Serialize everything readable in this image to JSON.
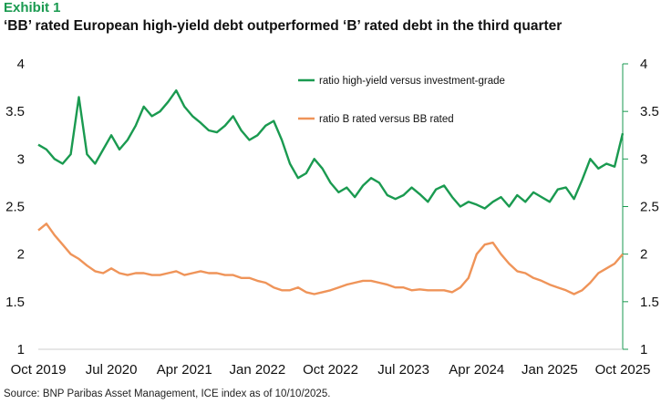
{
  "header": {
    "exhibit": "Exhibit 1",
    "title": "‘BB’ rated European high-yield debt outperformed ‘B’ rated debt in the third quarter"
  },
  "footer": {
    "source": "Source: BNP Paribas Asset Management, ICE index as of 10/10/2025."
  },
  "chart_data": {
    "type": "line",
    "title": "‘BB’ rated European high-yield debt outperformed ‘B’ rated debt in the third quarter",
    "xlabel": "",
    "ylabel": "",
    "ylim": [
      1,
      4
    ],
    "yticks": [
      "1",
      "1.5",
      "2",
      "2.5",
      "3",
      "3.5",
      "4"
    ],
    "xtick_labels": [
      "Oct 2019",
      "Jul 2020",
      "Apr 2021",
      "Jan 2022",
      "Oct 2022",
      "Jul 2023",
      "Apr 2024",
      "Jan 2025",
      "Oct 2025"
    ],
    "grid": false,
    "legend_position": "top-center",
    "colors": {
      "hy_ig": "#1a9a50",
      "b_bb": "#ef9459",
      "right_axis": "#1a9a50"
    },
    "series": [
      {
        "name": "ratio high-yield versus investment-grade",
        "key": "hy_ig",
        "x": [
          "2019-10",
          "2019-11",
          "2019-12",
          "2020-01",
          "2020-02",
          "2020-03",
          "2020-04",
          "2020-05",
          "2020-06",
          "2020-07",
          "2020-08",
          "2020-09",
          "2020-10",
          "2020-11",
          "2020-12",
          "2021-01",
          "2021-02",
          "2021-03",
          "2021-04",
          "2021-05",
          "2021-06",
          "2021-07",
          "2021-08",
          "2021-09",
          "2021-10",
          "2021-11",
          "2021-12",
          "2022-01",
          "2022-02",
          "2022-03",
          "2022-04",
          "2022-05",
          "2022-06",
          "2022-07",
          "2022-08",
          "2022-09",
          "2022-10",
          "2022-11",
          "2022-12",
          "2023-01",
          "2023-02",
          "2023-03",
          "2023-04",
          "2023-05",
          "2023-06",
          "2023-07",
          "2023-08",
          "2023-09",
          "2023-10",
          "2023-11",
          "2023-12",
          "2024-01",
          "2024-02",
          "2024-03",
          "2024-04",
          "2024-05",
          "2024-06",
          "2024-07",
          "2024-08",
          "2024-09",
          "2024-10",
          "2024-11",
          "2024-12",
          "2025-01",
          "2025-02",
          "2025-03",
          "2025-04",
          "2025-05",
          "2025-06",
          "2025-07",
          "2025-08",
          "2025-09",
          "2025-10"
        ],
        "values": [
          3.15,
          3.1,
          3.0,
          2.95,
          3.05,
          3.65,
          3.05,
          2.95,
          3.1,
          3.25,
          3.1,
          3.2,
          3.35,
          3.55,
          3.45,
          3.5,
          3.6,
          3.72,
          3.55,
          3.45,
          3.38,
          3.3,
          3.28,
          3.35,
          3.45,
          3.3,
          3.2,
          3.25,
          3.35,
          3.4,
          3.2,
          2.95,
          2.8,
          2.85,
          3.0,
          2.9,
          2.75,
          2.65,
          2.7,
          2.6,
          2.72,
          2.8,
          2.75,
          2.62,
          2.58,
          2.62,
          2.7,
          2.63,
          2.55,
          2.68,
          2.72,
          2.6,
          2.5,
          2.55,
          2.52,
          2.48,
          2.55,
          2.6,
          2.5,
          2.62,
          2.55,
          2.65,
          2.6,
          2.55,
          2.68,
          2.7,
          2.58,
          2.78,
          3.0,
          2.9,
          2.95,
          2.92,
          3.27
        ]
      },
      {
        "name": "ratio B rated versus BB rated",
        "key": "b_bb",
        "x": [
          "2019-10",
          "2019-11",
          "2019-12",
          "2020-01",
          "2020-02",
          "2020-03",
          "2020-04",
          "2020-05",
          "2020-06",
          "2020-07",
          "2020-08",
          "2020-09",
          "2020-10",
          "2020-11",
          "2020-12",
          "2021-01",
          "2021-02",
          "2021-03",
          "2021-04",
          "2021-05",
          "2021-06",
          "2021-07",
          "2021-08",
          "2021-09",
          "2021-10",
          "2021-11",
          "2021-12",
          "2022-01",
          "2022-02",
          "2022-03",
          "2022-04",
          "2022-05",
          "2022-06",
          "2022-07",
          "2022-08",
          "2022-09",
          "2022-10",
          "2022-11",
          "2022-12",
          "2023-01",
          "2023-02",
          "2023-03",
          "2023-04",
          "2023-05",
          "2023-06",
          "2023-07",
          "2023-08",
          "2023-09",
          "2023-10",
          "2023-11",
          "2023-12",
          "2024-01",
          "2024-02",
          "2024-03",
          "2024-04",
          "2024-05",
          "2024-06",
          "2024-07",
          "2024-08",
          "2024-09",
          "2024-10",
          "2024-11",
          "2024-12",
          "2025-01",
          "2025-02",
          "2025-03",
          "2025-04",
          "2025-05",
          "2025-06",
          "2025-07",
          "2025-08",
          "2025-09",
          "2025-10"
        ],
        "values": [
          2.25,
          2.32,
          2.2,
          2.1,
          2.0,
          1.95,
          1.88,
          1.82,
          1.8,
          1.85,
          1.8,
          1.78,
          1.8,
          1.8,
          1.78,
          1.78,
          1.8,
          1.82,
          1.78,
          1.8,
          1.82,
          1.8,
          1.8,
          1.78,
          1.78,
          1.75,
          1.75,
          1.72,
          1.7,
          1.65,
          1.62,
          1.62,
          1.65,
          1.6,
          1.58,
          1.6,
          1.62,
          1.65,
          1.68,
          1.7,
          1.72,
          1.72,
          1.7,
          1.68,
          1.65,
          1.65,
          1.62,
          1.63,
          1.62,
          1.62,
          1.62,
          1.6,
          1.65,
          1.75,
          2.0,
          2.1,
          2.12,
          2.0,
          1.9,
          1.82,
          1.8,
          1.75,
          1.72,
          1.68,
          1.65,
          1.62,
          1.58,
          1.62,
          1.7,
          1.8,
          1.85,
          1.9,
          2.0
        ]
      }
    ]
  }
}
